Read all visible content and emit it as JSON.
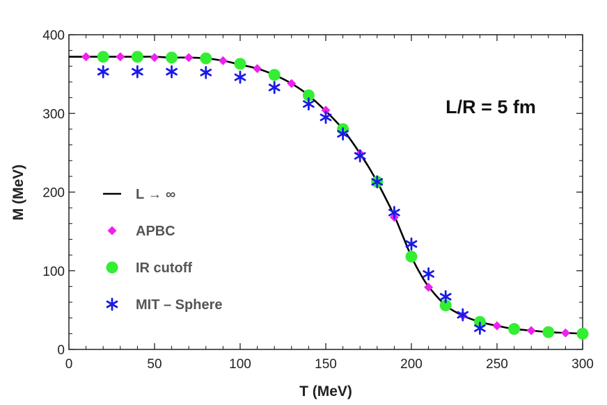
{
  "chart_data": {
    "type": "scatter",
    "title": "",
    "xlabel": "T (MeV)",
    "ylabel": "M (MeV)",
    "xlim": [
      0,
      300
    ],
    "ylim": [
      0,
      400
    ],
    "xticks": [
      0,
      50,
      100,
      150,
      200,
      250,
      300
    ],
    "yticks": [
      0,
      100,
      200,
      300,
      400
    ],
    "annotation": "L/R = 5 fm",
    "legend_position": "left-middle",
    "series": [
      {
        "name": "L → ∞",
        "kind": "line",
        "color": "#000000",
        "x": [
          0,
          10,
          20,
          30,
          40,
          50,
          60,
          70,
          80,
          90,
          100,
          110,
          120,
          130,
          140,
          150,
          155,
          160,
          165,
          170,
          175,
          180,
          185,
          190,
          195,
          200,
          205,
          210,
          220,
          230,
          240,
          250,
          260,
          270,
          280,
          290,
          300
        ],
        "y": [
          372,
          372,
          372,
          372,
          372,
          372,
          371,
          371,
          370,
          367,
          362,
          357,
          349,
          338,
          323,
          303,
          292,
          280,
          265,
          249,
          232,
          213,
          192,
          170,
          144,
          118,
          97,
          80,
          56,
          43,
          35,
          30,
          26,
          24,
          22,
          21,
          20
        ]
      },
      {
        "name": "APBC",
        "kind": "diamond",
        "color": "#ee20ee",
        "x": [
          10,
          20,
          30,
          40,
          50,
          60,
          70,
          80,
          90,
          100,
          110,
          120,
          130,
          140,
          150,
          160,
          170,
          180,
          190,
          200,
          210,
          220,
          230,
          240,
          250,
          260,
          270,
          280,
          290,
          300
        ],
        "y": [
          372,
          372,
          372,
          372,
          371,
          371,
          371,
          370,
          367,
          362,
          357,
          349,
          338,
          323,
          304,
          280,
          249,
          213,
          168,
          118,
          79,
          56,
          43,
          35,
          30,
          26,
          24,
          22,
          21,
          20
        ]
      },
      {
        "name": "IR cutoff",
        "kind": "circle",
        "color": "#33ee33",
        "x": [
          20,
          40,
          60,
          80,
          100,
          120,
          140,
          160,
          180,
          200,
          220,
          240,
          260,
          280,
          300
        ],
        "y": [
          372,
          372,
          371,
          370,
          363,
          349,
          323,
          280,
          213,
          118,
          56,
          35,
          26,
          22,
          20
        ]
      },
      {
        "name": "MIT – Sphere",
        "kind": "star",
        "color": "#1a1ae6",
        "x": [
          20,
          40,
          60,
          80,
          100,
          120,
          140,
          150,
          160,
          170,
          180,
          190,
          200,
          210,
          220,
          230,
          240
        ],
        "y": [
          353,
          353,
          353,
          352,
          346,
          333,
          312,
          295,
          274,
          246,
          213,
          174,
          134,
          96,
          67,
          44,
          27
        ]
      }
    ]
  }
}
